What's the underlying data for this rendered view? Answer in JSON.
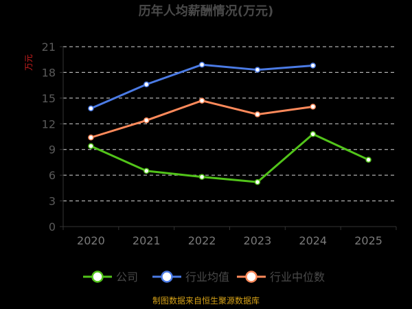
{
  "chart_data": {
    "type": "line",
    "title": "历年人均薪酬情况(万元)",
    "ylabel": "万元",
    "categories": [
      "2020",
      "2021",
      "2022",
      "2023",
      "2024",
      "2025"
    ],
    "ylim": [
      0,
      21
    ],
    "yticks": [
      0,
      3,
      6,
      9,
      12,
      15,
      18,
      21
    ],
    "grid": true,
    "legend_position": "bottom",
    "series": [
      {
        "name": "公司",
        "color": "#52c41a",
        "values": [
          9.4,
          6.5,
          5.8,
          5.2,
          10.8,
          7.8
        ]
      },
      {
        "name": "行业均值",
        "color": "#4b7be5",
        "values": [
          13.8,
          16.6,
          18.9,
          18.3,
          18.8,
          null
        ]
      },
      {
        "name": "行业中位数",
        "color": "#ff8a5b",
        "values": [
          10.4,
          12.4,
          14.7,
          13.1,
          14.0,
          null
        ]
      }
    ],
    "source": "制图数据来自恒生聚源数据库"
  }
}
